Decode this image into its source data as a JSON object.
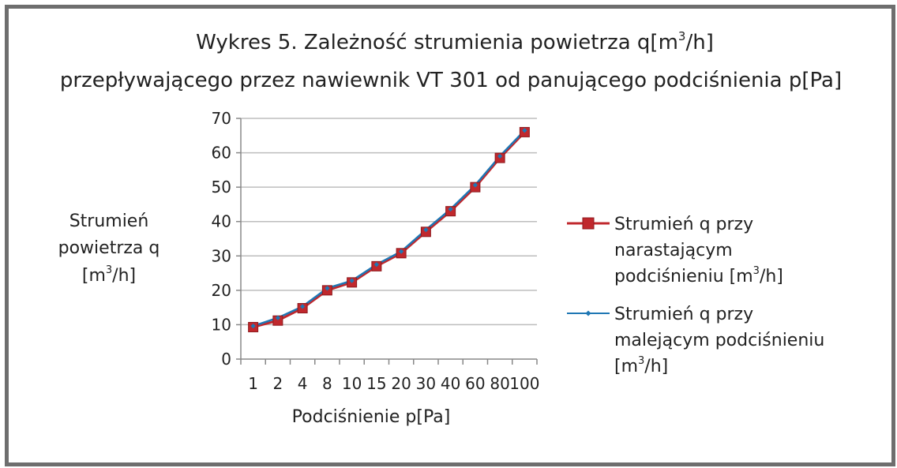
{
  "chart_data": {
    "type": "line",
    "title_line1": "Wykres 5. Zależność strumienia powietrza q[m",
    "title_line1_sup": "3",
    "title_line1_end": "/h]",
    "title_line2": "przepływającego przez nawiewnik VT 301 od panującego podciśnienia p[Pa]",
    "xlabel": "Podciśnienie p[Pa]",
    "ylabel_line1": "Strumień",
    "ylabel_line2": "powietrza q",
    "ylabel_line3_a": "[m",
    "ylabel_line3_sup": "3",
    "ylabel_line3_b": "/h]",
    "categories": [
      "1",
      "2",
      "4",
      "8",
      "10",
      "15",
      "20",
      "30",
      "40",
      "60",
      "80",
      "100"
    ],
    "ylim": [
      0,
      70
    ],
    "yticks": [
      "0",
      "10",
      "20",
      "30",
      "40",
      "50",
      "60",
      "70"
    ],
    "grid": true,
    "legend_position": "right",
    "series": [
      {
        "name_line1": "Strumień q przy",
        "name_line2": "narastającym",
        "name_line3_a": "podciśnieniu [m",
        "name_line3_sup": "3",
        "name_line3_b": "/h]",
        "color": "#c0282d",
        "marker": "square",
        "values": [
          9.3,
          11.2,
          14.8,
          20.0,
          22.3,
          27.0,
          30.8,
          37.0,
          43.0,
          50.0,
          58.5,
          66.0
        ]
      },
      {
        "name_line1": "Strumień q przy",
        "name_line2": "malejącym podciśnieniu",
        "name_line3_a": "[m",
        "name_line3_sup": "3",
        "name_line3_b": "/h]",
        "color": "#1f77b4",
        "marker": "diamond",
        "values": [
          9.6,
          12.0,
          15.3,
          20.6,
          22.8,
          27.5,
          31.3,
          37.6,
          43.6,
          50.6,
          59.0,
          66.5
        ]
      }
    ]
  }
}
